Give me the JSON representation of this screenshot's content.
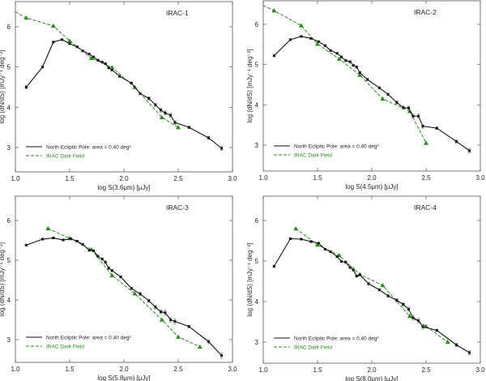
{
  "colors": {
    "nep": "#111111",
    "dark_field": "#2a8a1e",
    "errorbar": "#888888"
  },
  "chart_data": [
    {
      "type": "line",
      "title": "IRAC-1",
      "xlabel": "log S(3.6μm) [μJy]",
      "ylabel": "log (dN/dS) [mJy⁻¹ deg⁻²]",
      "xlim": [
        1.0,
        3.0
      ],
      "ylim": [
        2.4,
        6.6
      ],
      "xticks": [
        "1.0",
        "1.5",
        "2.0",
        "2.5",
        "3.0"
      ],
      "yticks": [
        "3",
        "4",
        "5",
        "6"
      ],
      "legend": "bottom-left",
      "series": [
        {
          "name": "North Ecliptic Pole: area = 0.40 deg²",
          "style": "solid-square",
          "x": [
            1.1,
            1.25,
            1.35,
            1.43,
            1.5,
            1.57,
            1.62,
            1.68,
            1.72,
            1.76,
            1.8,
            1.83,
            1.86,
            1.89,
            1.96,
            2.07,
            2.15,
            2.23,
            2.29,
            2.34,
            2.38,
            2.43,
            2.47,
            2.6,
            2.78,
            2.9
          ],
          "y": [
            4.5,
            5.0,
            5.62,
            5.68,
            5.58,
            5.5,
            5.4,
            5.32,
            5.25,
            5.17,
            5.12,
            5.08,
            4.98,
            4.93,
            4.77,
            4.6,
            4.34,
            4.22,
            4.06,
            3.93,
            3.86,
            3.8,
            3.62,
            3.5,
            3.24,
            2.98
          ],
          "yerr": [
            0.04,
            0.02,
            0.02,
            0.02,
            0.02,
            0.02,
            0.02,
            0.02,
            0.02,
            0.02,
            0.02,
            0.02,
            0.03,
            0.03,
            0.03,
            0.03,
            0.03,
            0.04,
            0.04,
            0.05,
            0.05,
            0.05,
            0.05,
            0.03,
            0.04,
            0.05
          ]
        },
        {
          "name": "IRAC Dark Field",
          "style": "dashed-triangle",
          "x": [
            1.0,
            1.1,
            1.35,
            1.5,
            1.7,
            1.89,
            2.1,
            2.35,
            2.5
          ],
          "y": [
            6.37,
            6.22,
            6.02,
            5.65,
            5.22,
            4.99,
            4.5,
            3.75,
            3.5
          ],
          "markers_from": 1
        }
      ]
    },
    {
      "type": "line",
      "title": "IRAC-2",
      "xlabel": "log S(4.5μm) [μJy]",
      "ylabel": "log (dN/dS) [mJy⁻¹ deg⁻²]",
      "xlim": [
        1.0,
        3.0
      ],
      "ylim": [
        2.4,
        6.6
      ],
      "xticks": [
        "1.0",
        "1.5",
        "2.0",
        "2.5",
        "3.0"
      ],
      "yticks": [
        "3",
        "4",
        "5",
        "6"
      ],
      "legend": "bottom-left",
      "series": [
        {
          "name": "North Ecliptic Pole: area = 0.40 deg²",
          "style": "solid-square",
          "x": [
            1.1,
            1.25,
            1.35,
            1.44,
            1.51,
            1.57,
            1.62,
            1.68,
            1.72,
            1.76,
            1.8,
            1.83,
            1.86,
            1.89,
            1.96,
            2.07,
            2.15,
            2.23,
            2.29,
            2.34,
            2.38,
            2.43,
            2.47,
            2.6,
            2.78,
            2.9
          ],
          "y": [
            5.22,
            5.62,
            5.7,
            5.65,
            5.57,
            5.47,
            5.35,
            5.28,
            5.19,
            5.1,
            5.07,
            4.98,
            4.94,
            4.8,
            4.63,
            4.42,
            4.26,
            4.06,
            3.93,
            3.92,
            3.72,
            3.72,
            3.47,
            3.42,
            3.09,
            2.86
          ],
          "yerr": [
            0.02,
            0.02,
            0.02,
            0.02,
            0.02,
            0.02,
            0.02,
            0.02,
            0.02,
            0.02,
            0.02,
            0.02,
            0.03,
            0.03,
            0.03,
            0.03,
            0.03,
            0.04,
            0.04,
            0.05,
            0.05,
            0.05,
            0.05,
            0.03,
            0.04,
            0.05
          ]
        },
        {
          "name": "IRAC Dark Field",
          "style": "dashed-triangle",
          "x": [
            1.0,
            1.1,
            1.35,
            1.5,
            1.7,
            1.89,
            2.1,
            2.35,
            2.5
          ],
          "y": [
            6.47,
            6.34,
            5.97,
            5.51,
            5.14,
            4.74,
            4.15,
            3.84,
            3.05
          ],
          "markers_from": 1
        }
      ]
    },
    {
      "type": "line",
      "title": "IRAC-3",
      "xlabel": "log S(5.8μm) [μJy]",
      "ylabel": "log (dN/dS) [mJy⁻¹ deg⁻²]",
      "xlim": [
        1.0,
        3.0
      ],
      "ylim": [
        2.4,
        6.6
      ],
      "xticks": [
        "1.0",
        "1.5",
        "2.0",
        "2.5",
        "3.0"
      ],
      "yticks": [
        "3",
        "4",
        "5",
        "6"
      ],
      "legend": "bottom-left",
      "series": [
        {
          "name": "North Ecliptic Pole: area = 0.40 deg²",
          "style": "solid-square",
          "x": [
            1.1,
            1.25,
            1.35,
            1.44,
            1.51,
            1.57,
            1.62,
            1.68,
            1.72,
            1.76,
            1.8,
            1.83,
            1.86,
            1.89,
            1.97,
            2.07,
            2.15,
            2.23,
            2.29,
            2.34,
            2.38,
            2.43,
            2.47,
            2.6,
            2.78,
            2.9
          ],
          "y": [
            5.38,
            5.53,
            5.56,
            5.51,
            5.54,
            5.48,
            5.4,
            5.25,
            5.24,
            5.1,
            5.03,
            4.95,
            4.8,
            4.74,
            4.58,
            4.29,
            4.15,
            3.98,
            3.82,
            3.7,
            3.68,
            3.5,
            3.46,
            3.33,
            2.95,
            2.6
          ],
          "yerr": [
            0.02,
            0.02,
            0.02,
            0.02,
            0.02,
            0.02,
            0.02,
            0.02,
            0.02,
            0.02,
            0.02,
            0.03,
            0.03,
            0.03,
            0.03,
            0.03,
            0.04,
            0.04,
            0.05,
            0.05,
            0.06,
            0.06,
            0.06,
            0.03,
            0.05,
            0.07
          ]
        },
        {
          "name": "IRAC Dark Field",
          "style": "dashed-triangle",
          "x": [
            1.3,
            1.5,
            1.7,
            1.89,
            2.1,
            2.35,
            2.5,
            2.7
          ],
          "y": [
            5.8,
            5.55,
            5.27,
            4.62,
            4.16,
            3.5,
            3.07,
            2.82
          ],
          "markers_from": 0
        }
      ]
    },
    {
      "type": "line",
      "title": "IRAC-4",
      "xlabel": "log S(8.0μm) [μJy]",
      "ylabel": "log (dN/dS) [mJy⁻¹ deg⁻²]",
      "xlim": [
        1.0,
        3.0
      ],
      "ylim": [
        2.4,
        6.6
      ],
      "xticks": [
        "1.0",
        "1.5",
        "2.0",
        "2.5",
        "3.0"
      ],
      "yticks": [
        "3",
        "4",
        "5",
        "6"
      ],
      "legend": "bottom-left",
      "series": [
        {
          "name": "North Ecliptic Pole: area = 0.40 deg²",
          "style": "solid-square",
          "x": [
            1.1,
            1.25,
            1.35,
            1.44,
            1.51,
            1.57,
            1.62,
            1.68,
            1.72,
            1.76,
            1.8,
            1.83,
            1.86,
            1.89,
            1.97,
            2.07,
            2.15,
            2.23,
            2.29,
            2.34,
            2.38,
            2.43,
            2.47,
            2.6,
            2.78,
            2.9
          ],
          "y": [
            4.87,
            5.55,
            5.54,
            5.48,
            5.44,
            5.29,
            5.23,
            5.11,
            4.99,
            4.97,
            4.84,
            4.78,
            4.63,
            4.66,
            4.44,
            4.29,
            4.14,
            4.03,
            3.93,
            3.81,
            3.6,
            3.53,
            3.38,
            3.29,
            2.93,
            2.74
          ],
          "yerr": [
            0.03,
            0.02,
            0.02,
            0.02,
            0.02,
            0.02,
            0.02,
            0.02,
            0.02,
            0.02,
            0.02,
            0.03,
            0.03,
            0.03,
            0.03,
            0.03,
            0.03,
            0.04,
            0.04,
            0.05,
            0.06,
            0.06,
            0.06,
            0.03,
            0.04,
            0.05
          ]
        },
        {
          "name": "IRAC Dark Field",
          "style": "dashed-triangle",
          "x": [
            1.3,
            1.5,
            1.7,
            1.89,
            2.1,
            2.35,
            2.5,
            2.7
          ],
          "y": [
            5.8,
            5.4,
            5.14,
            4.67,
            4.4,
            3.64,
            3.39,
            3.0
          ],
          "markers_from": 0
        }
      ]
    }
  ]
}
